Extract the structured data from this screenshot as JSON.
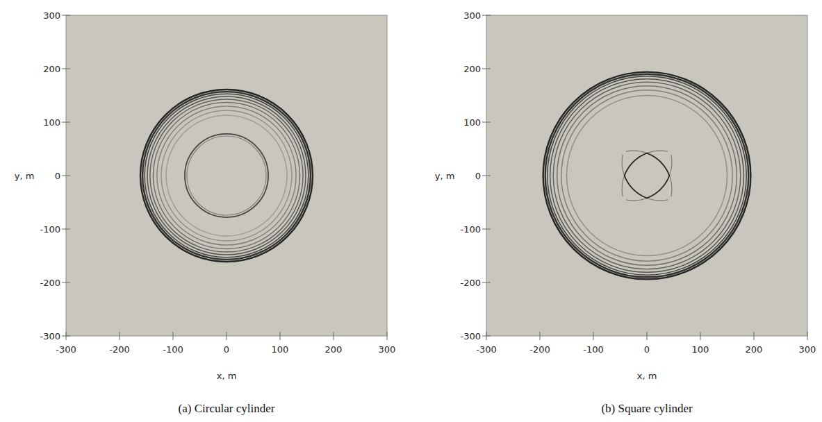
{
  "chart_data": [
    {
      "type": "wave_field",
      "title": "(a) Circular cylinder",
      "x_label": "x, m",
      "y_label": "y, m",
      "xlim": [
        -300,
        300
      ],
      "ylim": [
        -300,
        300
      ],
      "xticks": [
        -300,
        -200,
        -100,
        0,
        100,
        200,
        300
      ],
      "yticks": [
        -300,
        -200,
        -100,
        0,
        100,
        200,
        300
      ],
      "marker": "circle",
      "color": "#1a1a1a",
      "outer_fronts": [
        161,
        157,
        153,
        148,
        143,
        137,
        130,
        122,
        113
      ],
      "inner_fronts": [
        78,
        74
      ]
    },
    {
      "type": "wave_field",
      "title": "(b) Square cylinder",
      "x_label": "x, m",
      "y_label": "y, m",
      "xlim": [
        -300,
        300
      ],
      "ylim": [
        -300,
        300
      ],
      "xticks": [
        -300,
        -200,
        -100,
        0,
        100,
        200,
        300
      ],
      "yticks": [
        -300,
        -200,
        -100,
        0,
        100,
        200,
        300
      ],
      "marker": "diamond",
      "color": "#1a1a1a",
      "outer_fronts": [
        194,
        190,
        186,
        181,
        175,
        168,
        160,
        150
      ],
      "inner_fronts": [
        42
      ]
    }
  ]
}
